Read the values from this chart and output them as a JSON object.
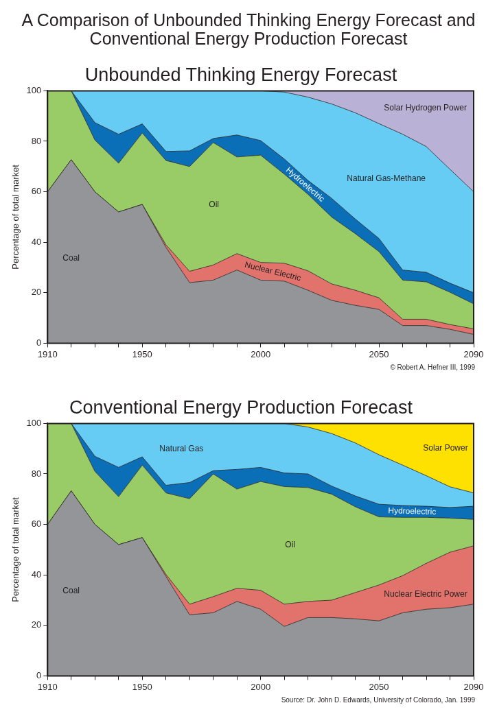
{
  "chart_data": [
    {
      "type": "other",
      "title": "A Comparison of Unbounded Thinking Energy Forecast and Conventional Energy Production Forecast"
    },
    {
      "type": "area",
      "title": "Unbounded Thinking Energy Forecast",
      "ylabel": "Percentage of total market",
      "stacked": true,
      "x": [
        1910,
        1920,
        1930,
        1940,
        1950,
        1960,
        1970,
        1980,
        1990,
        2000,
        2010,
        2020,
        2030,
        2040,
        2050,
        2060,
        2070,
        2080,
        2090
      ],
      "xlim": [
        1910,
        2090
      ],
      "xticks": [
        1910,
        {
          "value": 1920,
          "label": null
        },
        {
          "value": 1930,
          "label": null
        },
        {
          "value": 1940,
          "label": null
        },
        1950,
        {
          "value": 1960,
          "label": null
        },
        {
          "value": 1970,
          "label": null
        },
        {
          "value": 1980,
          "label": null
        },
        {
          "value": 1990,
          "label": null
        },
        2000,
        {
          "value": 2010,
          "label": null
        },
        {
          "value": 2020,
          "label": null
        },
        {
          "value": 2030,
          "label": null
        },
        {
          "value": 2040,
          "label": null
        },
        2050,
        {
          "value": 2060,
          "label": null
        },
        {
          "value": 2070,
          "label": null
        },
        {
          "value": 2080,
          "label": null
        },
        2090
      ],
      "ylim": [
        0,
        100
      ],
      "yticks": [
        0,
        20,
        40,
        60,
        80,
        100
      ],
      "series": [
        {
          "name": "Coal",
          "color": "#939598",
          "values": [
            60,
            72.7,
            60,
            52,
            55,
            38,
            24,
            25,
            29,
            25,
            24.6,
            21,
            17,
            15,
            13.4,
            7,
            7,
            5.5,
            3.5
          ]
        },
        {
          "name": "Nuclear Electric",
          "color": "#e2736c",
          "values": [
            0,
            0,
            0,
            0,
            0,
            1,
            4.5,
            6,
            6.5,
            7,
            7.1,
            7.7,
            6.5,
            6,
            4.6,
            2.5,
            2.5,
            1.9,
            2.2
          ]
        },
        {
          "name": "Oil",
          "color": "#99cc66",
          "values": [
            40,
            27.3,
            20.5,
            19.3,
            28.3,
            33.4,
            41.5,
            48.5,
            38.3,
            42.5,
            35.3,
            30.3,
            26.5,
            22.4,
            18.3,
            15.5,
            14.8,
            12.8,
            9.9
          ]
        },
        {
          "name": "Hydroelectric",
          "color": "#0b6fb8",
          "values": [
            0,
            0,
            6.9,
            11.5,
            3.6,
            3.6,
            6.2,
            1.6,
            8.7,
            5.8,
            6,
            5.5,
            7.4,
            5.8,
            5.2,
            4,
            3.8,
            3.6,
            4.4
          ]
        },
        {
          "name": "Natural Gas-Methane",
          "color": "#66ccf4",
          "values": [
            0,
            0,
            12.6,
            17.2,
            13.1,
            24,
            23.8,
            18.9,
            17.5,
            19.7,
            26.5,
            33,
            37.4,
            42.1,
            45.5,
            53.8,
            49.8,
            45.1,
            40
          ]
        },
        {
          "name": "Solar Hydrogen Power",
          "color": "#bab2d6",
          "values": [
            0,
            0,
            0,
            0,
            0,
            0,
            0,
            0,
            0,
            0,
            0.5,
            2.5,
            5.2,
            8.7,
            13,
            17.2,
            22.1,
            31.1,
            40
          ]
        }
      ],
      "annotations": [
        "© Robert A. Hefner III, 1999"
      ]
    },
    {
      "type": "area",
      "title": "Conventional Energy Production Forecast",
      "ylabel": "Percentage of total market",
      "stacked": true,
      "x": [
        1910,
        1920,
        1930,
        1940,
        1950,
        1960,
        1970,
        1980,
        1990,
        2000,
        2010,
        2020,
        2030,
        2040,
        2050,
        2060,
        2070,
        2080,
        2090
      ],
      "xlim": [
        1910,
        2090
      ],
      "xticks": [
        1910,
        {
          "value": 1920,
          "label": null
        },
        {
          "value": 1930,
          "label": null
        },
        {
          "value": 1940,
          "label": null
        },
        1950,
        {
          "value": 1960,
          "label": null
        },
        {
          "value": 1970,
          "label": null
        },
        {
          "value": 1980,
          "label": null
        },
        {
          "value": 1990,
          "label": null
        },
        2000,
        {
          "value": 2010,
          "label": null
        },
        {
          "value": 2020,
          "label": null
        },
        {
          "value": 2030,
          "label": null
        },
        {
          "value": 2040,
          "label": null
        },
        2050,
        {
          "value": 2060,
          "label": null
        },
        {
          "value": 2070,
          "label": null
        },
        {
          "value": 2080,
          "label": null
        },
        2090
      ],
      "ylim": [
        0,
        100
      ],
      "yticks": [
        0,
        20,
        40,
        60,
        80,
        100
      ],
      "series": [
        {
          "name": "Coal",
          "color": "#939598",
          "values": [
            60,
            73.3,
            60,
            52,
            54.8,
            39.4,
            24.2,
            25,
            29.5,
            26.4,
            19.6,
            23.1,
            23.1,
            22.6,
            21.8,
            25,
            26.4,
            27,
            28.4
          ]
        },
        {
          "name": "Nuclear Electric Power",
          "color": "#e2736c",
          "values": [
            0,
            0,
            0,
            0,
            0,
            0.8,
            4.2,
            6.4,
            5.2,
            7.5,
            8.8,
            6.4,
            6.9,
            10.4,
            14.2,
            14.7,
            18.2,
            22,
            23.1
          ]
        },
        {
          "name": "Oil",
          "color": "#99cc66",
          "values": [
            40,
            26.7,
            21,
            19,
            28.7,
            32.3,
            41.8,
            48.6,
            39.3,
            43.1,
            46.6,
            45.1,
            42,
            34,
            27,
            23.1,
            18.2,
            13.5,
            10.5
          ]
        },
        {
          "name": "Hydroelectric",
          "color": "#0b6fb8",
          "values": [
            0,
            0,
            6,
            11.6,
            3.3,
            3,
            6.4,
            1.3,
            7.8,
            5.6,
            5.4,
            5.4,
            3.2,
            4.3,
            5,
            4.7,
            4.4,
            4.2,
            5.2
          ]
        },
        {
          "name": "Natural Gas",
          "color": "#66ccf4",
          "values": [
            0,
            0,
            13,
            17.4,
            13.2,
            24.5,
            23.4,
            18.7,
            18.2,
            17.4,
            19.6,
            18.6,
            20.8,
            21,
            19.6,
            16,
            12.1,
            8.2,
            5.3
          ]
        },
        {
          "name": "Solar Power",
          "color": "#ffe100",
          "values": [
            0,
            0,
            0,
            0,
            0,
            0,
            0,
            0,
            0,
            0,
            0,
            1.4,
            4,
            7.7,
            12.4,
            16.5,
            20.7,
            25.1,
            27.5
          ]
        }
      ],
      "annotations": [
        "Source: Dr. John D. Edwards, University of Colorado, Jan. 1999"
      ]
    }
  ]
}
